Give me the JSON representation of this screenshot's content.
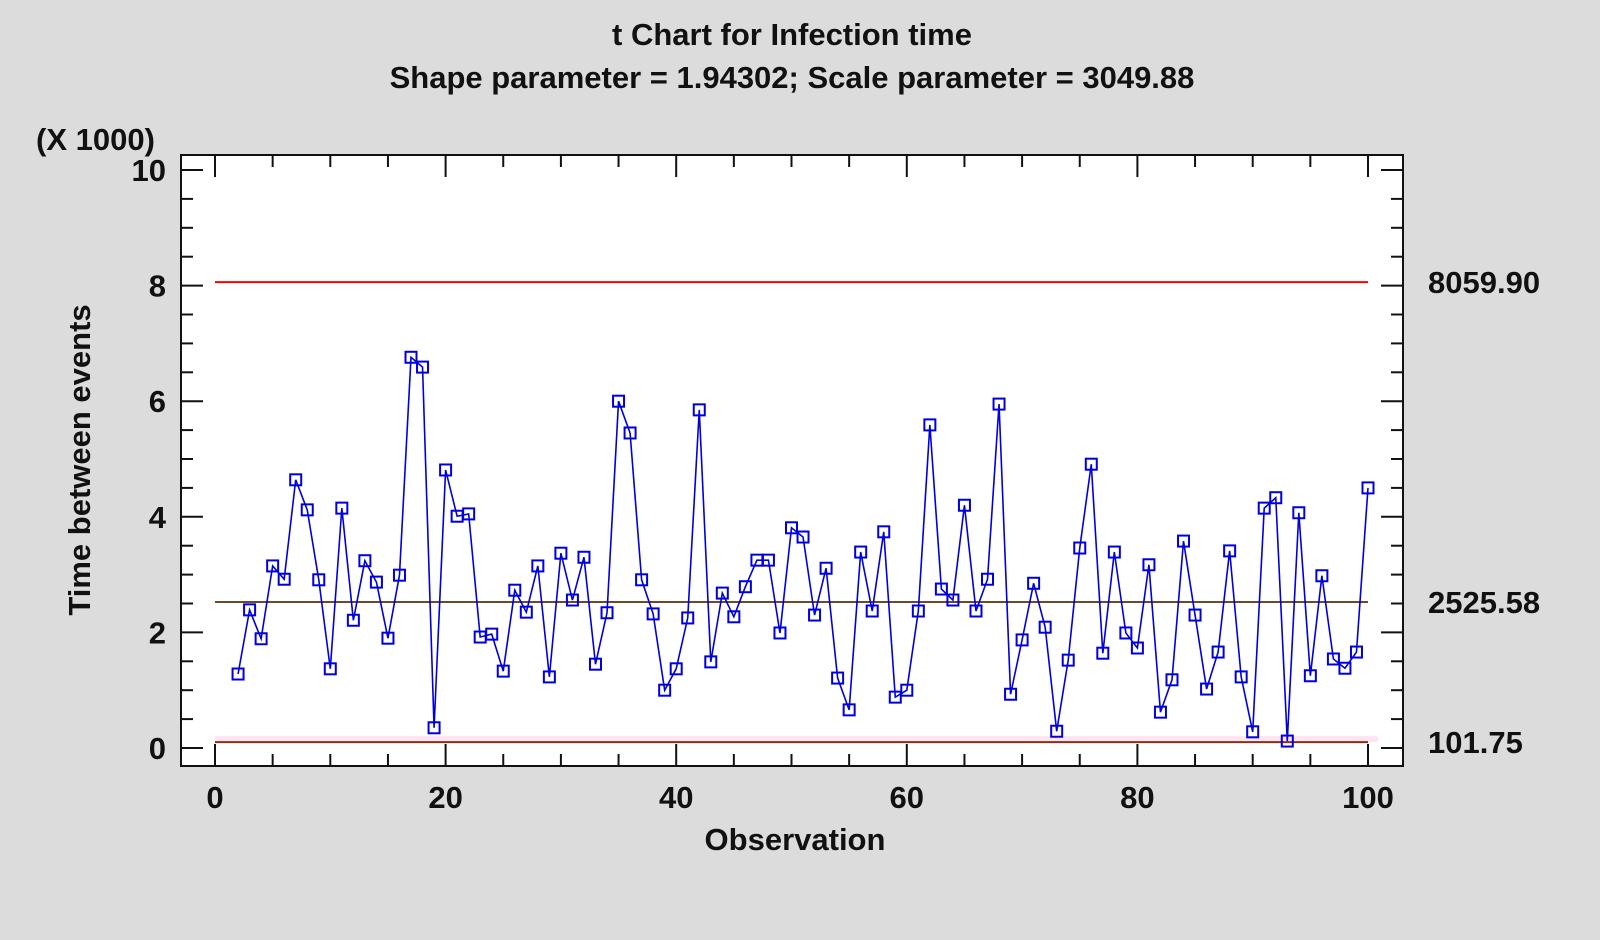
{
  "chart_data": {
    "type": "line",
    "title": "t Chart for Infection time",
    "subtitle": "Shape parameter = 1.94302; Scale parameter = 3049.88",
    "xlabel": "Observation",
    "ylabel": "Time between events",
    "y_multiplier_label": "(X 1000)",
    "xlim": [
      0,
      100
    ],
    "ylim": [
      0,
      10000
    ],
    "x_ticks": [
      "0",
      "20",
      "40",
      "60",
      "80",
      "100"
    ],
    "y_ticks": [
      "0",
      "2",
      "4",
      "6",
      "8",
      "10"
    ],
    "grid": false,
    "marker": "open-square",
    "colors": {
      "series": "#0000dd",
      "ucl": "#ff0000",
      "center": "#6b4a2a",
      "lcl": "#8b2f10",
      "lcl_band": "#ffe4f4",
      "background": "#dcdcdc"
    },
    "control_limits": {
      "ucl": {
        "value": 8059.9,
        "label": "8059.90"
      },
      "center": {
        "value": 2525.58,
        "label": "2525.58"
      },
      "lcl": {
        "value": 101.75,
        "label": "101.75"
      }
    },
    "x": [
      2,
      3,
      4,
      5,
      6,
      7,
      8,
      9,
      10,
      11,
      12,
      13,
      14,
      15,
      16,
      17,
      18,
      19,
      20,
      21,
      22,
      23,
      24,
      25,
      26,
      27,
      28,
      29,
      30,
      31,
      32,
      33,
      34,
      35,
      36,
      37,
      38,
      39,
      40,
      41,
      42,
      43,
      44,
      45,
      46,
      47,
      48,
      49,
      50,
      51,
      52,
      53,
      54,
      55,
      56,
      57,
      58,
      59,
      60,
      61,
      62,
      63,
      64,
      65,
      66,
      67,
      68,
      69,
      70,
      71,
      72,
      73,
      74,
      75,
      76,
      77,
      78,
      79,
      80,
      81,
      82,
      83,
      84,
      85,
      86,
      87,
      88,
      89,
      90,
      91,
      92,
      93,
      94,
      95,
      96,
      97,
      98,
      99,
      100
    ],
    "values": [
      1280,
      2390,
      1890,
      3150,
      2920,
      4640,
      4120,
      2910,
      1370,
      4150,
      2210,
      3240,
      2870,
      1900,
      2990,
      6760,
      6590,
      350,
      4810,
      4010,
      4050,
      1920,
      1970,
      1330,
      2730,
      2350,
      3150,
      1230,
      3370,
      2560,
      3300,
      1450,
      2340,
      6000,
      5450,
      2910,
      2320,
      1000,
      1370,
      2250,
      5850,
      1490,
      2680,
      2270,
      2790,
      3250,
      3250,
      1990,
      3810,
      3650,
      2300,
      3110,
      1210,
      660,
      3390,
      2370,
      3740,
      880,
      1000,
      2370,
      5590,
      2750,
      2560,
      4200,
      2370,
      2920,
      5950,
      930,
      1870,
      2850,
      2090,
      290,
      1520,
      3460,
      4910,
      1640,
      3390,
      1990,
      1730,
      3170,
      620,
      1180,
      3580,
      2300,
      1020,
      1660,
      3410,
      1230,
      280,
      4150,
      4330,
      120,
      4070,
      1250,
      2980,
      1540,
      1380,
      1660,
      4500
    ]
  }
}
